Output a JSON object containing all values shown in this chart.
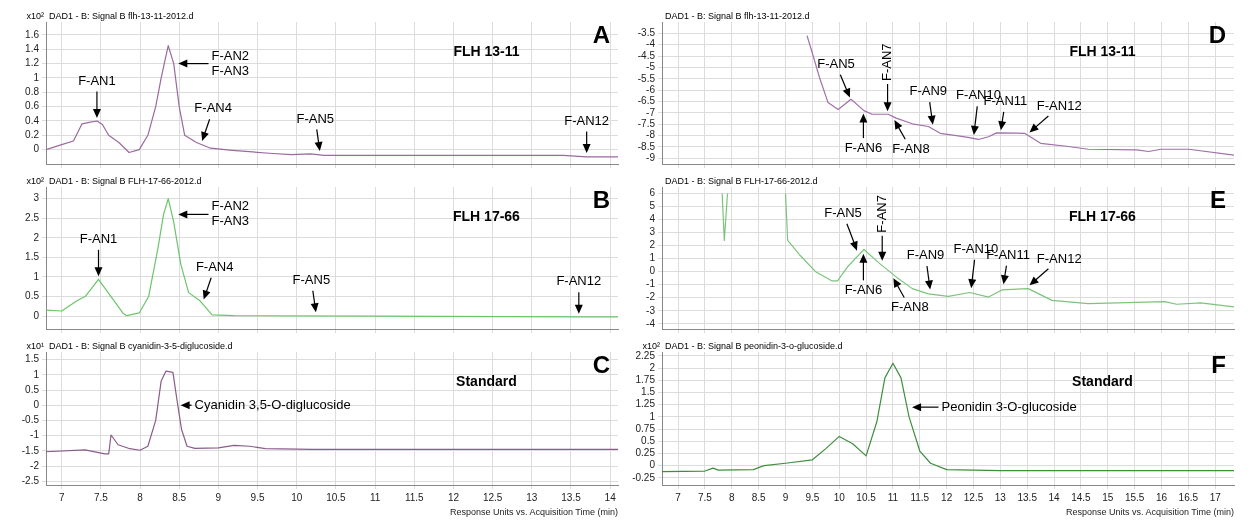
{
  "chart_data": [
    {
      "type": "line",
      "title": "A",
      "subtitle": "DAD1 - B: Signal B flh-13-11-2012.d",
      "ylabel": "x10²",
      "xlim": [
        6.8,
        14.1
      ],
      "ylim": [
        -0.2,
        1.78
      ],
      "xticks": [
        7,
        7.5,
        8,
        8.5,
        9,
        9.5,
        10,
        10.5,
        11,
        11.5,
        12,
        12.5,
        13,
        13.5,
        14
      ],
      "yticks": [
        0,
        0.2,
        0.4,
        0.6,
        0.8,
        1,
        1.2,
        1.4,
        1.6
      ],
      "tick_labels": "y",
      "grid": true,
      "legend": false,
      "marker": "none",
      "x": [
        6.8,
        7.0,
        7.15,
        7.26,
        7.35,
        7.45,
        7.52,
        7.6,
        7.73,
        7.86,
        7.99,
        8.1,
        8.2,
        8.27,
        8.36,
        8.43,
        8.5,
        8.57,
        8.72,
        8.9,
        9.18,
        9.65,
        9.93,
        10.17,
        10.35,
        12.0,
        13.4,
        13.7,
        14.1
      ],
      "series": [
        {
          "color": "#9a6a9e",
          "values": [
            0,
            0.07,
            0.12,
            0.36,
            0.38,
            0.4,
            0.35,
            0.2,
            0.1,
            -0.04,
            0,
            0.2,
            0.6,
            1.0,
            1.45,
            1.2,
            0.6,
            0.2,
            0.1,
            0.02,
            -0.01,
            -0.05,
            -0.07,
            -0.06,
            -0.08,
            -0.08,
            -0.08,
            -0.1,
            -0.1
          ]
        }
      ],
      "annotations": [
        "FLH 13-11",
        {
          "text": "F-AN1",
          "x": 7.45,
          "y": 0.4
        },
        {
          "text": "F-AN2\nF-AN3",
          "x": 8.45,
          "y": 1.2
        },
        {
          "text": "F-AN4",
          "x": 8.78,
          "y": 0.08
        },
        {
          "text": "F-AN5",
          "x": 10.3,
          "y": -0.06
        },
        {
          "text": "F-AN12",
          "x": 13.7,
          "y": -0.09
        }
      ]
    },
    {
      "type": "line",
      "title": "B",
      "subtitle": "DAD1 - B: Signal B FLH-17-66-2012.d",
      "ylabel": "x10²",
      "xlim": [
        6.8,
        14.1
      ],
      "ylim": [
        -0.33,
        3.3
      ],
      "xticks": [
        7,
        7.5,
        8,
        8.5,
        9,
        9.5,
        10,
        10.5,
        11,
        11.5,
        12,
        12.5,
        13,
        13.5,
        14
      ],
      "yticks": [
        0,
        0.5,
        1,
        1.5,
        2,
        2.5,
        3
      ],
      "tick_labels": "y",
      "grid": true,
      "legend": false,
      "marker": "none",
      "x": [
        6.8,
        7.0,
        7.2,
        7.3,
        7.47,
        7.63,
        7.78,
        7.83,
        7.99,
        8.11,
        8.23,
        8.3,
        8.36,
        8.43,
        8.52,
        8.62,
        8.76,
        8.92,
        9.2,
        11.0,
        13.7,
        14.1
      ],
      "series": [
        {
          "color": "#6cc46c",
          "values": [
            0.15,
            0.13,
            0.4,
            0.5,
            0.94,
            0.5,
            0.08,
            0.01,
            0.08,
            0.5,
            1.75,
            2.6,
            3.0,
            2.4,
            1.33,
            0.6,
            0.4,
            0.03,
            0.01,
            0,
            -0.02,
            -0.02
          ]
        }
      ],
      "annotations": [
        "FLH 17-66",
        {
          "text": "F-AN1",
          "x": 7.47,
          "y": 0.94
        },
        {
          "text": "F-AN2\nF-AN3",
          "x": 8.45,
          "y": 2.6
        },
        {
          "text": "F-AN4",
          "x": 8.8,
          "y": 0.35
        },
        {
          "text": "F-AN5",
          "x": 10.25,
          "y": 0.02
        },
        {
          "text": "F-AN12",
          "x": 13.6,
          "y": -0.02
        }
      ]
    },
    {
      "type": "line",
      "title": "C",
      "subtitle": "DAD1 - B: Signal B cyanidin-3-5-diglucoside.d",
      "ylabel": "x10¹",
      "xlabel": "Response Units vs. Acquisition Time (min)",
      "xlim": [
        6.8,
        14.1
      ],
      "ylim": [
        -2.63,
        1.75
      ],
      "xticks": [
        7,
        7.5,
        8,
        8.5,
        9,
        9.5,
        10,
        10.5,
        11,
        11.5,
        12,
        12.5,
        13,
        13.5,
        14
      ],
      "yticks": [
        -2.5,
        -2,
        -1.5,
        -1,
        -0.5,
        0,
        0.5,
        1,
        1.5
      ],
      "grid": true,
      "legend": false,
      "marker": "none",
      "x": [
        6.8,
        7.3,
        7.55,
        7.6,
        7.63,
        7.72,
        7.87,
        8.0,
        8.1,
        8.2,
        8.27,
        8.33,
        8.42,
        8.47,
        8.53,
        8.6,
        8.7,
        9.0,
        9.2,
        9.4,
        9.6,
        10.2,
        14.1
      ],
      "series": [
        {
          "color": "#8a5c8a",
          "values": [
            -1.53,
            -1.47,
            -1.6,
            -1.6,
            -0.98,
            -1.3,
            -1.43,
            -1.48,
            -1.35,
            -0.5,
            0.8,
            1.12,
            1.08,
            0.2,
            -0.8,
            -1.35,
            -1.42,
            -1.4,
            -1.32,
            -1.35,
            -1.43,
            -1.45,
            -1.45
          ]
        }
      ],
      "annotations": [
        "Standard",
        {
          "text": "Cyanidin 3,5-O-diglucoside",
          "x": 8.48,
          "y": 0.0
        }
      ]
    },
    {
      "type": "line",
      "title": "D",
      "subtitle": "DAD1 - B: Signal B flh-13-11-2012.d",
      "xlim": [
        6.7,
        17.35
      ],
      "ylim": [
        -9.25,
        -3.0
      ],
      "xticks": [
        7,
        7.5,
        8,
        8.5,
        9,
        9.5,
        10,
        10.5,
        11,
        11.5,
        12,
        12.5,
        13,
        13.5,
        14,
        14.5,
        15,
        15.5,
        16,
        16.5,
        17
      ],
      "yticks": [
        -9,
        -8.5,
        -8,
        -7.5,
        -7,
        -6.5,
        -6,
        -5.5,
        -5,
        -4.5,
        -4,
        -3.5
      ],
      "tick_labels": "y",
      "grid": true,
      "legend": false,
      "marker": "none",
      "x": [
        9.4,
        9.49,
        9.64,
        9.79,
        9.98,
        10.22,
        10.46,
        10.61,
        10.91,
        11.06,
        11.36,
        11.66,
        11.88,
        12.18,
        12.4,
        12.59,
        12.78,
        12.93,
        13.45,
        13.75,
        14.27,
        14.64,
        15.54,
        15.76,
        15.99,
        16.51,
        17.35
      ],
      "series": [
        {
          "color": "#a070a8",
          "values": [
            -3.6,
            -4.3,
            -5.5,
            -6.54,
            -6.85,
            -6.4,
            -6.9,
            -7.06,
            -7.06,
            -7.23,
            -7.48,
            -7.6,
            -7.9,
            -8.0,
            -8.08,
            -8.17,
            -8.05,
            -7.88,
            -7.9,
            -8.34,
            -8.48,
            -8.6,
            -8.63,
            -8.7,
            -8.6,
            -8.6,
            -8.86
          ]
        }
      ],
      "annotations": [
        "FLH 13-11",
        {
          "text": "F-AN5",
          "x": 10.22,
          "y": -6.45
        },
        {
          "text": "F-AN6",
          "x": 10.45,
          "y": -6.9
        },
        {
          "text": "F-AN7",
          "x": 10.9,
          "y": -7.06
        },
        {
          "text": "F-AN8",
          "x": 11.0,
          "y": -7.2
        },
        {
          "text": "F-AN9",
          "x": 11.75,
          "y": -7.65
        },
        {
          "text": "F-AN10",
          "x": 12.5,
          "y": -8.1
        },
        {
          "text": "F-AN11",
          "x": 13.0,
          "y": -7.9
        },
        {
          "text": "F-AN12",
          "x": 13.5,
          "y": -7.95
        }
      ]
    },
    {
      "type": "line",
      "title": "E",
      "subtitle": "DAD1 - B: Signal B FLH-17-66-2012.d",
      "xlim": [
        6.7,
        17.35
      ],
      "ylim": [
        -4.4,
        6.5
      ],
      "xticks": [
        7,
        7.5,
        8,
        8.5,
        9,
        9.5,
        10,
        10.5,
        11,
        11.5,
        12,
        12.5,
        13,
        13.5,
        14,
        14.5,
        15,
        15.5,
        16,
        16.5,
        17
      ],
      "yticks": [
        -4,
        -3,
        -2,
        -1,
        0,
        1,
        2,
        3,
        4,
        5,
        6
      ],
      "tick_labels": "y",
      "grid": true,
      "legend": false,
      "marker": "none",
      "x": [
        7.82,
        7.86,
        7.92,
        8.5,
        9.0,
        9.04,
        9.26,
        9.56,
        9.86,
        9.97,
        10.16,
        10.46,
        10.76,
        11.06,
        11.36,
        11.66,
        12.03,
        12.43,
        12.78,
        13.03,
        13.52,
        13.96,
        14.64,
        16.06,
        16.28,
        16.73,
        17.35
      ],
      "series": [
        {
          "color": "#7cc47c",
          "values": [
            6.0,
            2.4,
            6.0,
            null,
            6.0,
            2.4,
            1.3,
            0.0,
            -0.7,
            -0.7,
            0.4,
            1.7,
            0.6,
            -0.4,
            -1.3,
            -1.7,
            -1.9,
            -1.6,
            -1.95,
            -1.4,
            -1.3,
            -2.2,
            -2.45,
            -2.3,
            -2.5,
            -2.4,
            -2.7
          ]
        }
      ],
      "annotations": [
        "FLH 17-66",
        {
          "text": "F-AN5",
          "x": 10.35,
          "y": 1.4
        },
        {
          "text": "F-AN6",
          "x": 10.45,
          "y": 1.6
        },
        {
          "text": "F-AN7",
          "x": 10.8,
          "y": 0.6
        },
        {
          "text": "F-AN8",
          "x": 10.98,
          "y": -0.3
        },
        {
          "text": "F-AN9",
          "x": 11.7,
          "y": -1.6
        },
        {
          "text": "F-AN10",
          "x": 12.45,
          "y": -1.5
        },
        {
          "text": "F-AN11",
          "x": 13.05,
          "y": -1.2
        },
        {
          "text": "F-AN12",
          "x": 13.5,
          "y": -1.2
        }
      ]
    },
    {
      "type": "line",
      "title": "F",
      "subtitle": "DAD1 - B: Signal B peonidin-3-o-glucoside.d",
      "ylabel": "x10²",
      "xlabel": "Response Units vs. Acquisition Time (min)",
      "xlim": [
        6.7,
        17.35
      ],
      "ylim": [
        -0.4,
        2.33
      ],
      "xticks": [
        7,
        7.5,
        8,
        8.5,
        9,
        9.5,
        10,
        10.5,
        11,
        11.5,
        12,
        12.5,
        13,
        13.5,
        14,
        14.5,
        15,
        15.5,
        16,
        16.5,
        17
      ],
      "yticks": [
        -0.25,
        0,
        0.25,
        0.5,
        0.75,
        1,
        1.25,
        1.5,
        1.75,
        2,
        2.25
      ],
      "grid": true,
      "legend": false,
      "marker": "none",
      "x": [
        6.7,
        7.5,
        7.65,
        7.75,
        8.4,
        8.6,
        9.0,
        9.5,
        9.75,
        10.0,
        10.25,
        10.5,
        10.7,
        10.85,
        11.0,
        11.15,
        11.3,
        11.5,
        11.7,
        12.0,
        13.0,
        17.35
      ],
      "series": [
        {
          "color": "#3e8e3e",
          "values": [
            -0.12,
            -0.11,
            -0.05,
            -0.09,
            -0.08,
            0.0,
            0.05,
            0.12,
            0.35,
            0.6,
            0.45,
            0.2,
            0.9,
            1.8,
            2.1,
            1.8,
            1.0,
            0.3,
            0.05,
            -0.08,
            -0.1,
            -0.1
          ]
        }
      ],
      "annotations": [
        "Standard",
        {
          "text": "Peonidin 3-O-glucoside",
          "x": 11.3,
          "y": 1.2
        }
      ]
    }
  ]
}
